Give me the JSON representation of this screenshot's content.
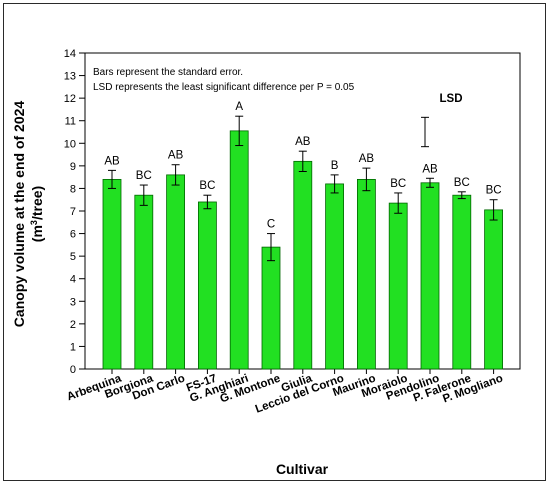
{
  "chart_data": {
    "type": "bar",
    "categories": [
      "Arbequina",
      "Borgiona",
      "Don Carlo",
      "FS-17",
      "G. Anghiari",
      "G. Montone",
      "Giulia",
      "Leccio del Corno",
      "Maurino",
      "Moraiolo",
      "Pendolino",
      "P. Falerone",
      "P. Mogliano"
    ],
    "values": [
      8.4,
      7.7,
      8.6,
      7.4,
      10.55,
      5.4,
      9.2,
      8.2,
      8.4,
      7.35,
      8.25,
      7.7,
      7.05
    ],
    "errors": [
      0.4,
      0.45,
      0.45,
      0.3,
      0.65,
      0.6,
      0.45,
      0.4,
      0.5,
      0.45,
      0.2,
      0.15,
      0.45
    ],
    "letters": [
      "AB",
      "BC",
      "AB",
      "BC",
      "A",
      "C",
      "AB",
      "B",
      "AB",
      "BC",
      "AB",
      "BC",
      "BC"
    ],
    "xlabel": "Cultivar",
    "ylabel_line1": "Canopy volume  at the end of 2024",
    "ylabel_unit_prefix": "(m",
    "ylabel_unit_sup": "3",
    "ylabel_unit_suffix": "/tree)",
    "ylim": [
      0,
      14
    ],
    "yticks": [
      0,
      1,
      2,
      3,
      4,
      5,
      6,
      7,
      8,
      9,
      10,
      11,
      12,
      13,
      14
    ],
    "annotations": [
      "Bars represent the standard error.",
      "LSD represents the least significant difference per P = 0.05"
    ],
    "lsd": {
      "label": "LSD",
      "low": 9.85,
      "high": 11.15
    },
    "bar_color": "#22e022",
    "bar_edge": "#006600"
  }
}
